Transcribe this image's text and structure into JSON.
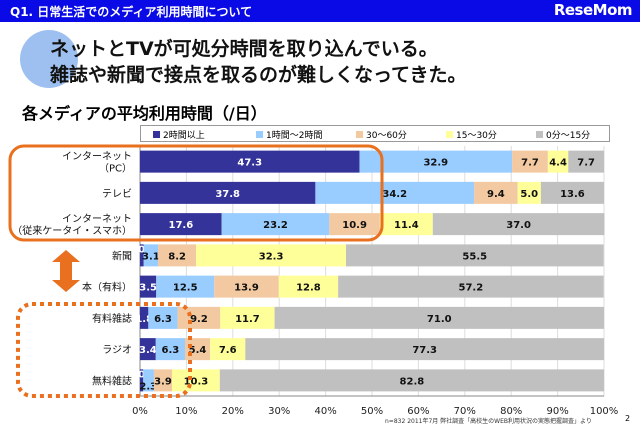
{
  "header": {
    "title": "Q1. 日常生活でのメディア利用時間について",
    "logo": "ReseMom"
  },
  "headline": [
    "ネットとTVが可処分時間を取り込んでいる。",
    "雑誌や新聞で接点を取るのが難しくなってきた。"
  ],
  "chart_data": {
    "type": "bar",
    "orientation": "horizontal",
    "stacked": true,
    "title": "各メディアの平均利用時間（/日）",
    "categories": [
      "インターネット\n（PC）",
      "テレビ",
      "インターネット\n（従来ケータイ・スマホ）",
      "新聞",
      "本（有料）",
      "有料雑誌",
      "ラジオ",
      "無料雑誌"
    ],
    "series": [
      {
        "name": "2時間以上",
        "color": "#333399",
        "values": [
          47.3,
          37.8,
          17.6,
          0.8,
          3.5,
          1.8,
          3.4,
          0.7
        ]
      },
      {
        "name": "1時間～2時間",
        "color": "#99ccff",
        "values": [
          32.9,
          34.2,
          23.2,
          3.1,
          12.5,
          6.3,
          6.3,
          2.3
        ]
      },
      {
        "name": "30～60分",
        "color": "#f2c9a0",
        "values": [
          7.7,
          9.4,
          10.9,
          8.2,
          13.9,
          9.2,
          5.4,
          3.9
        ]
      },
      {
        "name": "15～30分",
        "color": "#ffff99",
        "values": [
          4.4,
          5.0,
          11.4,
          32.3,
          12.8,
          11.7,
          7.6,
          10.3
        ]
      },
      {
        "name": "0分～15分",
        "color": "#c0c0c0",
        "values": [
          7.7,
          13.6,
          37.0,
          55.5,
          57.2,
          71.0,
          77.3,
          82.8
        ]
      }
    ],
    "xlim": [
      0,
      100
    ],
    "xticks": [
      "0%",
      "10%",
      "20%",
      "30%",
      "40%",
      "50%",
      "60%",
      "70%",
      "80%",
      "90%",
      "100%"
    ],
    "legend": "top",
    "grid": true
  },
  "footer": {
    "note": "n=832  2011年7月  弊社調査「高校生のWEB利用状況の実態把握調査」より",
    "page": "2"
  },
  "accent": "#e8701e"
}
